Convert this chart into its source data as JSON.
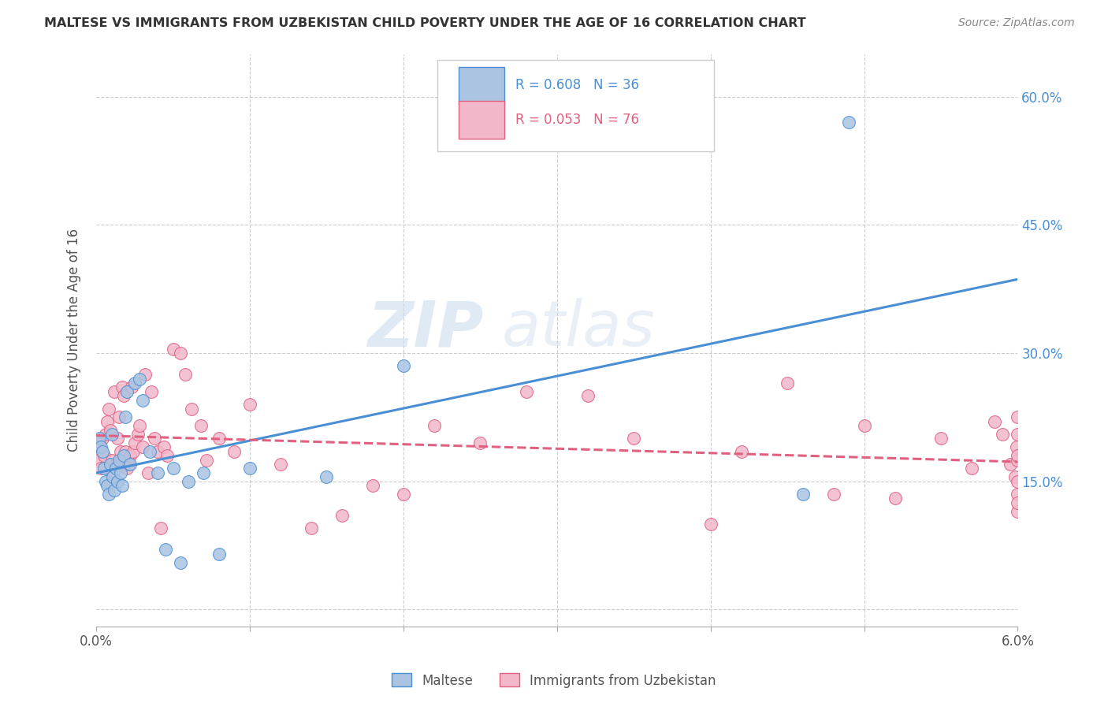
{
  "title": "MALTESE VS IMMIGRANTS FROM UZBEKISTAN CHILD POVERTY UNDER THE AGE OF 16 CORRELATION CHART",
  "source": "Source: ZipAtlas.com",
  "ylabel": "Child Poverty Under the Age of 16",
  "xlim": [
    0.0,
    6.0
  ],
  "ylim": [
    -2.0,
    65.0
  ],
  "color_maltese": "#aac4e2",
  "color_uzbek": "#f2b8ca",
  "line_color_maltese": "#4a8fd4",
  "line_color_uzbek": "#e06080",
  "legend_label_maltese": "Maltese",
  "legend_label_uzbek": "Immigrants from Uzbekistan",
  "watermark": "ZIPatlas",
  "legend_r_maltese": "0.608",
  "legend_n_maltese": "36",
  "legend_r_uzbek": "0.053",
  "legend_n_uzbek": "76",
  "maltese_x": [
    0.02,
    0.03,
    0.04,
    0.05,
    0.06,
    0.07,
    0.08,
    0.09,
    0.1,
    0.11,
    0.12,
    0.13,
    0.14,
    0.15,
    0.16,
    0.17,
    0.18,
    0.19,
    0.2,
    0.22,
    0.25,
    0.28,
    0.3,
    0.35,
    0.4,
    0.45,
    0.5,
    0.55,
    0.6,
    0.7,
    0.8,
    1.0,
    1.5,
    2.0,
    4.6,
    4.9
  ],
  "maltese_y": [
    20.0,
    19.0,
    18.5,
    16.5,
    15.0,
    14.5,
    13.5,
    17.0,
    20.5,
    15.5,
    14.0,
    16.5,
    15.0,
    17.5,
    16.0,
    14.5,
    18.0,
    22.5,
    25.5,
    17.0,
    26.5,
    27.0,
    24.5,
    18.5,
    16.0,
    7.0,
    16.5,
    5.5,
    15.0,
    16.0,
    6.5,
    16.5,
    15.5,
    28.5,
    13.5,
    57.0
  ],
  "uzbek_x": [
    0.01,
    0.02,
    0.03,
    0.04,
    0.05,
    0.06,
    0.07,
    0.08,
    0.09,
    0.1,
    0.11,
    0.12,
    0.13,
    0.14,
    0.15,
    0.16,
    0.17,
    0.18,
    0.19,
    0.2,
    0.21,
    0.22,
    0.23,
    0.24,
    0.25,
    0.27,
    0.28,
    0.3,
    0.32,
    0.34,
    0.36,
    0.38,
    0.4,
    0.42,
    0.44,
    0.46,
    0.5,
    0.55,
    0.58,
    0.62,
    0.68,
    0.72,
    0.8,
    0.9,
    1.0,
    1.2,
    1.4,
    1.6,
    1.8,
    2.0,
    2.2,
    2.5,
    2.8,
    3.2,
    3.5,
    4.0,
    4.2,
    4.5,
    4.8,
    5.0,
    5.2,
    5.5,
    5.7,
    5.85,
    5.9,
    5.95,
    5.98,
    5.99,
    6.0,
    6.0,
    6.0,
    6.0,
    6.0,
    6.0,
    6.0,
    6.0
  ],
  "uzbek_y": [
    17.5,
    19.0,
    16.5,
    20.0,
    18.0,
    20.5,
    22.0,
    23.5,
    21.0,
    17.5,
    16.0,
    25.5,
    17.0,
    20.0,
    22.5,
    18.5,
    26.0,
    25.0,
    18.5,
    16.5,
    17.0,
    18.0,
    26.0,
    18.5,
    19.5,
    20.5,
    21.5,
    19.0,
    27.5,
    16.0,
    25.5,
    20.0,
    18.5,
    9.5,
    19.0,
    18.0,
    30.5,
    30.0,
    27.5,
    23.5,
    21.5,
    17.5,
    20.0,
    18.5,
    24.0,
    17.0,
    9.5,
    11.0,
    14.5,
    13.5,
    21.5,
    19.5,
    25.5,
    25.0,
    20.0,
    10.0,
    18.5,
    26.5,
    13.5,
    21.5,
    13.0,
    20.0,
    16.5,
    22.0,
    20.5,
    17.0,
    15.5,
    19.0,
    22.5,
    17.5,
    20.5,
    13.5,
    11.5,
    18.0,
    15.0,
    12.5
  ]
}
